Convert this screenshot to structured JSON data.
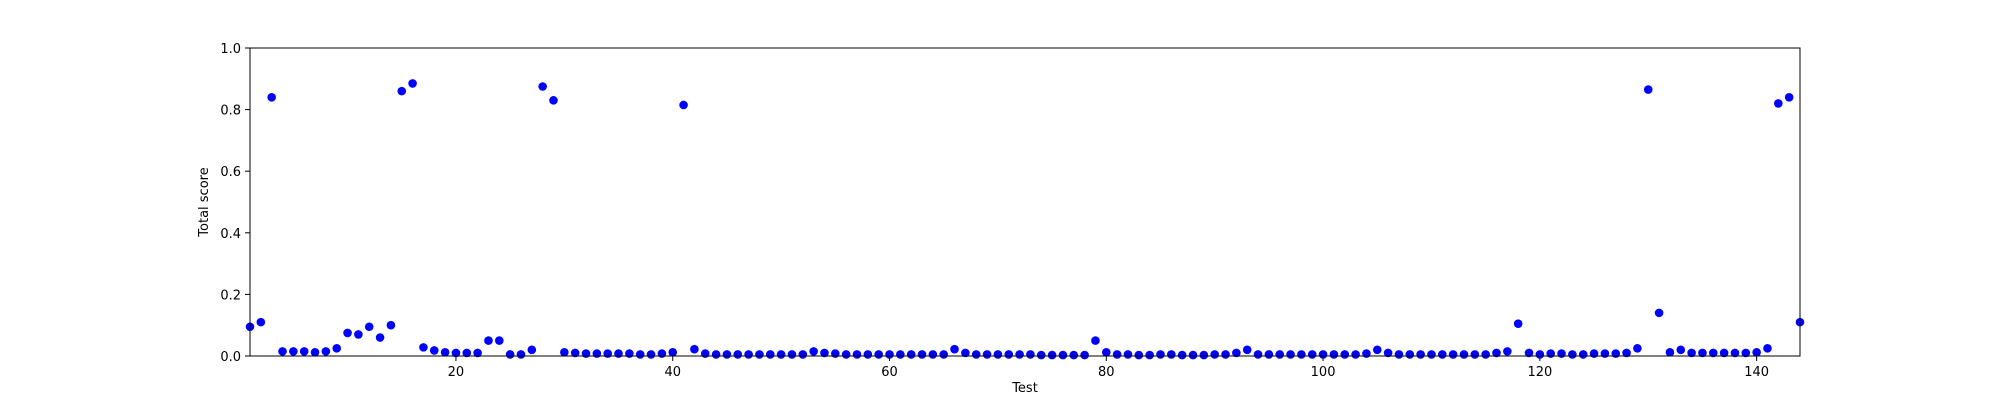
{
  "chart_data": {
    "type": "scatter",
    "x_label": "Test",
    "y_label": "Total score",
    "color": "#0000ff",
    "x": [
      1,
      2,
      3,
      4,
      5,
      6,
      7,
      8,
      9,
      10,
      11,
      12,
      13,
      14,
      15,
      16,
      17,
      18,
      19,
      20,
      21,
      22,
      23,
      24,
      25,
      26,
      27,
      28,
      29,
      30,
      31,
      32,
      33,
      34,
      35,
      36,
      37,
      38,
      39,
      40,
      41,
      42,
      43,
      44,
      45,
      46,
      47,
      48,
      49,
      50,
      51,
      52,
      53,
      54,
      55,
      56,
      57,
      58,
      59,
      60,
      61,
      62,
      63,
      64,
      65,
      66,
      67,
      68,
      69,
      70,
      71,
      72,
      73,
      74,
      75,
      76,
      77,
      78,
      79,
      80,
      81,
      82,
      83,
      84,
      85,
      86,
      87,
      88,
      89,
      90,
      91,
      92,
      93,
      94,
      95,
      96,
      97,
      98,
      99,
      100,
      101,
      102,
      103,
      104,
      105,
      106,
      107,
      108,
      109,
      110,
      111,
      112,
      113,
      114,
      115,
      116,
      117,
      118,
      119,
      120,
      121,
      122,
      123,
      124,
      125,
      126,
      127,
      128,
      129,
      130,
      131,
      132,
      133,
      134,
      135,
      136,
      137,
      138,
      139,
      140,
      141,
      142,
      143,
      144
    ],
    "values": [
      0.095,
      0.11,
      0.84,
      0.015,
      0.015,
      0.015,
      0.012,
      0.015,
      0.025,
      0.075,
      0.07,
      0.095,
      0.06,
      0.1,
      0.86,
      0.885,
      0.028,
      0.018,
      0.012,
      0.01,
      0.01,
      0.01,
      0.05,
      0.05,
      0.005,
      0.005,
      0.02,
      0.875,
      0.83,
      0.012,
      0.01,
      0.008,
      0.008,
      0.008,
      0.008,
      0.008,
      0.005,
      0.005,
      0.008,
      0.012,
      0.815,
      0.022,
      0.008,
      0.005,
      0.005,
      0.005,
      0.005,
      0.005,
      0.005,
      0.005,
      0.005,
      0.005,
      0.015,
      0.01,
      0.008,
      0.005,
      0.005,
      0.005,
      0.005,
      0.005,
      0.005,
      0.005,
      0.005,
      0.005,
      0.005,
      0.022,
      0.01,
      0.005,
      0.005,
      0.005,
      0.005,
      0.005,
      0.005,
      0.003,
      0.003,
      0.003,
      0.003,
      0.003,
      0.05,
      0.012,
      0.005,
      0.005,
      0.003,
      0.003,
      0.005,
      0.005,
      0.003,
      0.003,
      0.003,
      0.005,
      0.005,
      0.01,
      0.02,
      0.005,
      0.005,
      0.005,
      0.005,
      0.005,
      0.005,
      0.005,
      0.005,
      0.005,
      0.005,
      0.008,
      0.02,
      0.01,
      0.005,
      0.005,
      0.005,
      0.005,
      0.005,
      0.005,
      0.005,
      0.005,
      0.005,
      0.01,
      0.015,
      0.105,
      0.01,
      0.005,
      0.008,
      0.008,
      0.005,
      0.005,
      0.008,
      0.008,
      0.008,
      0.01,
      0.025,
      0.865,
      0.14,
      0.012,
      0.02,
      0.01,
      0.01,
      0.01,
      0.01,
      0.01,
      0.01,
      0.012,
      0.025,
      0.82,
      0.84,
      0.11
    ],
    "xlim": [
      1,
      144
    ],
    "xticks": [
      20,
      40,
      60,
      80,
      100,
      120,
      140
    ],
    "ylim": [
      0,
      1
    ],
    "yticks": [
      {
        "value": 0,
        "label": "0.0"
      },
      {
        "value": 0.2,
        "label": "0.2"
      },
      {
        "value": 0.4,
        "label": "0.4"
      },
      {
        "value": 0.6,
        "label": "0.6"
      },
      {
        "value": 0.8,
        "label": "0.8"
      },
      {
        "value": 1,
        "label": "1.0"
      }
    ]
  }
}
